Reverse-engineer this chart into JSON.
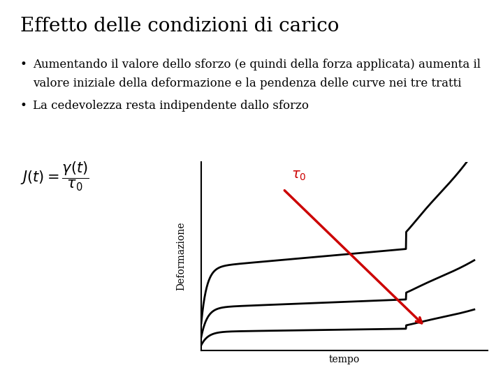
{
  "title": "Effetto delle condizioni di carico",
  "bullet1_line1": "Aumentando il valore dello sforzo (e quindi della forza applicata) aumenta il",
  "bullet1_line2": "valore iniziale della deformazione e la pendenza delle curve nei tre tratti",
  "bullet2": "La cedevolezza resta indipendente dallo sforzo",
  "xlabel": "tempo",
  "ylabel": "Deformazione",
  "tau_label": "$\\tau_0$",
  "background_color": "#ffffff",
  "curve_color": "#000000",
  "arrow_color": "#cc0000",
  "title_fontsize": 20,
  "bullet_fontsize": 12,
  "axis_label_fontsize": 10,
  "formula_fontsize": 15
}
